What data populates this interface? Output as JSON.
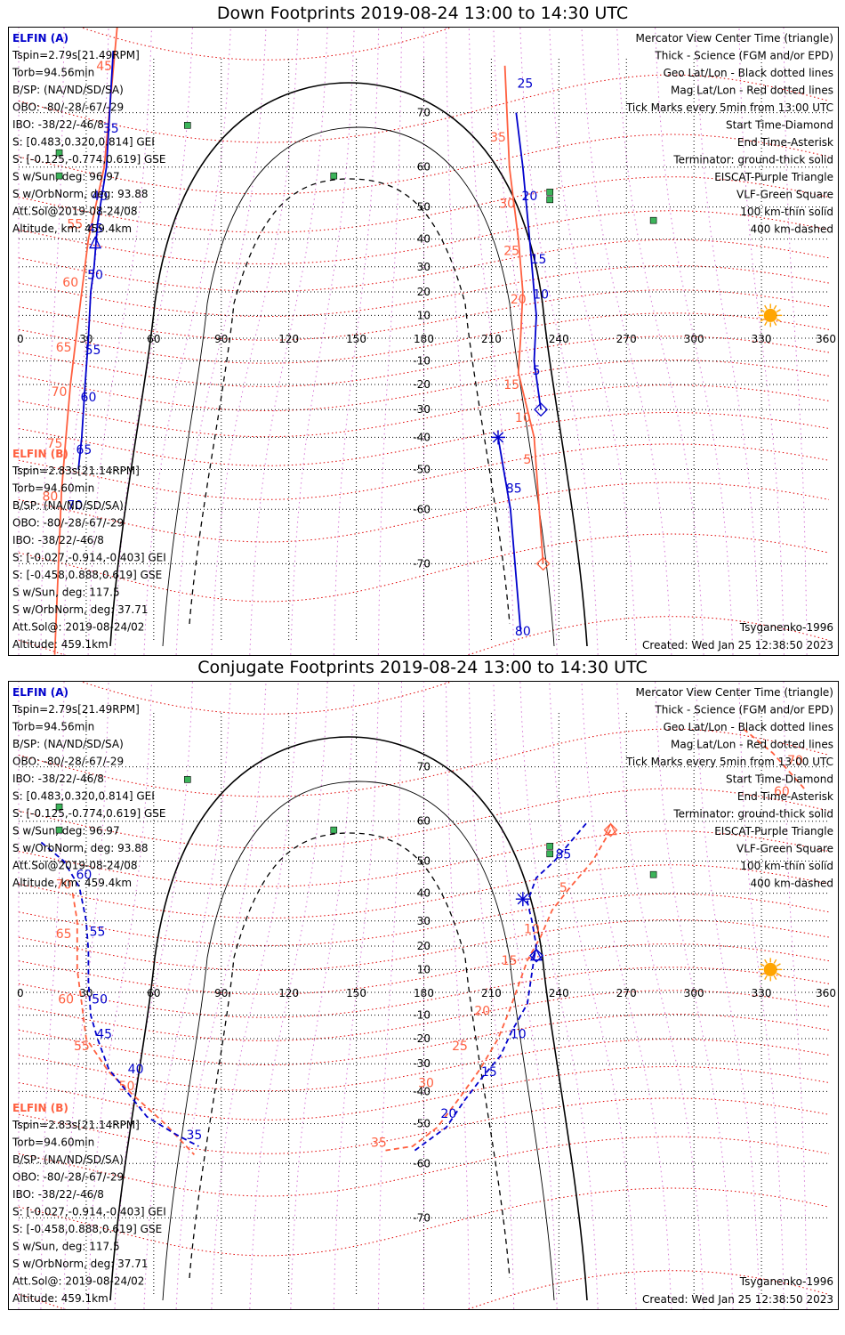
{
  "chart_data": [
    {
      "type": "map",
      "title": "Down Footprints 2019-08-24 13:00 to 14:30 UTC",
      "xlabel": "Geographic longitude (deg)",
      "ylabel": "Geographic latitude (deg)",
      "xlim": [
        0,
        360
      ],
      "ylim": [
        -80,
        80
      ],
      "lon_ticks": [
        "0",
        "30",
        "60",
        "90",
        "120",
        "150",
        "180",
        "210",
        "240",
        "270",
        "300",
        "330",
        "360"
      ],
      "lat_ticks": [
        "70",
        "60",
        "50",
        "40",
        "30",
        "20",
        "10",
        "-10",
        "-20",
        "-30",
        "-40",
        "-50",
        "-60",
        "-70"
      ],
      "spacecraft_a": {
        "name": "ELFIN (A)",
        "color": "#0000cc",
        "info": [
          "Tspin=2.79s[21.49RPM]",
          "Torb=94.56min",
          "B/SP: (NA/ND/SD/SA)",
          "OBO: -80/-28/-67/-29",
          "IBO: -38/22/-46/8",
          "S: [0.483,0.320,0.814] GEI",
          "S: [-0.125,-0.774,0.619] GSE",
          "S w/Sun, deg: 96.97",
          "S w/OrbNorm, deg: 93.88",
          "Att.Sol@2019-08-24/08",
          "Altitude, km: 459.4km"
        ],
        "segments": [
          {
            "points": [
              [
                42,
                77.5
              ],
              [
                39,
                60
              ],
              [
                35,
                45
              ],
              [
                33.5,
                30
              ],
              [
                32,
                20
              ],
              [
                31,
                0
              ],
              [
                29.5,
                -20
              ],
              [
                28,
                -40
              ],
              [
                26.5,
                -50
              ]
            ]
          },
          {
            "points": [
              [
                221,
                70
              ],
              [
                224,
                60
              ],
              [
                227,
                40
              ],
              [
                229,
                20
              ],
              [
                230,
                10
              ],
              [
                229,
                -10
              ],
              [
                232,
                -30
              ]
            ]
          },
          {
            "points": [
              [
                213,
                -40
              ],
              [
                218.5,
                -60
              ],
              [
                223,
                -78
              ]
            ]
          }
        ],
        "labels": [
          [
            "35",
            41,
            67.5
          ],
          [
            "40",
            36,
            53
          ],
          [
            "45",
            34,
            43.5
          ],
          [
            "50",
            34,
            27
          ],
          [
            "55",
            33,
            -5
          ],
          [
            "60",
            31,
            -25
          ],
          [
            "65",
            29,
            -44
          ],
          [
            "70",
            25,
            -59
          ],
          [
            "25",
            225,
            74
          ],
          [
            "20",
            227,
            53
          ],
          [
            "15",
            231,
            33
          ],
          [
            "10",
            232,
            19
          ],
          [
            "5",
            230,
            -14
          ],
          [
            "85",
            220,
            -55
          ],
          [
            "80",
            224,
            -78
          ]
        ],
        "start": [
          34,
          38.5
        ],
        "end_time": [
          232,
          -30
        ],
        "end_asterisk": [
          213,
          -40
        ]
      },
      "spacecraft_b": {
        "name": "ELFIN (B)",
        "color": "#ff6040",
        "info": [
          "Tspin=2.83s[21.14RPM]",
          "Torb=94.60min",
          "B/SP: (NA/ND/SD/SA)",
          "OBO: -80/-28/-67/-29",
          "IBO: -38/22/-46/8",
          "S: [-0.027,-0.914,-0.403] GEI",
          "S: [-0.458,0.888,0.619] GSE",
          "S w/Sun, deg: 117.5",
          "S w/OrbNorm, deg: 37.71",
          "Att.Sol@: 2019-08-24/02",
          "Altitude: 459.1km"
        ],
        "segments": [
          {
            "points": [
              [
                44,
                80
              ],
              [
                38,
                60
              ],
              [
                31,
                40
              ],
              [
                28,
                20
              ],
              [
                25.5,
                0
              ],
              [
                23,
                -20
              ],
              [
                21,
                -40
              ],
              [
                19,
                -56
              ],
              [
                16,
                -80
              ]
            ]
          },
          {
            "points": [
              [
                216,
                76
              ],
              [
                218,
                60
              ],
              [
                222,
                40
              ],
              [
                224,
                20
              ],
              [
                223,
                0
              ],
              [
                222,
                -15
              ],
              [
                229,
                -40
              ],
              [
                233,
                -70
              ]
            ]
          }
        ],
        "labels": [
          [
            "45",
            38,
            76
          ],
          [
            "55",
            25,
            45
          ],
          [
            "60",
            23,
            24
          ],
          [
            "65",
            20,
            -4
          ],
          [
            "70",
            18,
            -23
          ],
          [
            "75",
            16,
            -42
          ],
          [
            "80",
            14,
            -57
          ],
          [
            "35",
            213,
            66
          ],
          [
            "30",
            217,
            51
          ],
          [
            "25",
            219,
            36
          ],
          [
            "20",
            222,
            17
          ],
          [
            "15",
            219,
            -20
          ],
          [
            "10",
            224,
            -33
          ],
          [
            "5",
            226,
            -47
          ]
        ],
        "start": [
          44,
          80
        ],
        "end_time": [
          233,
          -70
        ]
      },
      "legend_items": [
        "Mercator View Center Time (triangle)",
        "Thick - Science (FGM and/or EPD)",
        "Geo Lat/Lon - Black dotted lines",
        "Mag Lat/Lon - Red dotted lines",
        "Tick Marks every 5min from 13:00 UTC",
        "Start Time-Diamond",
        "End Time-Asterisk",
        "Terminator: ground-thick solid",
        "EISCAT-Purple Triangle",
        "VLF-Green Square",
        "100 km-thin solid",
        "400 km-dashed"
      ],
      "credit": "Tsyganenko-1996",
      "created": "Created: Wed Jan 25 12:38:50 2023"
    },
    {
      "type": "map",
      "title": "Conjugate Footprints 2019-08-24 13:00 to 14:30 UTC",
      "xlabel": "Geographic longitude (deg)",
      "ylabel": "Geographic latitude (deg)",
      "xlim": [
        0,
        360
      ],
      "ylim": [
        -80,
        80
      ],
      "lon_ticks": [
        "0",
        "30",
        "60",
        "90",
        "120",
        "150",
        "180",
        "210",
        "240",
        "270",
        "300",
        "330",
        "360"
      ],
      "lat_ticks": [
        "70",
        "60",
        "50",
        "40",
        "30",
        "20",
        "10",
        "-10",
        "-20",
        "-30",
        "-40",
        "-50",
        "-60",
        "-70"
      ],
      "spacecraft_a": {
        "name": "ELFIN (A)",
        "color": "#0000cc",
        "info": [
          "Tspin=2.79s[21.49RPM]",
          "Torb=94.56min",
          "B/SP: (NA/ND/SD/SA)",
          "OBO: -80/-28/-67/-29",
          "IBO: -38/22/-46/8",
          "S: [0.483,0.320,0.814] GEI",
          "S: [-0.125,-0.774,0.619] GSE",
          "S w/Sun, deg: 96.97",
          "S w/OrbNorm, deg: 93.88",
          "Att.Sol@2019-08-24/08",
          "Altitude, km: 459.4km"
        ],
        "segments": [
          {
            "points": [
              [
                10,
                55
              ],
              [
                20,
                50
              ],
              [
                27,
                42
              ],
              [
                30,
                30
              ],
              [
                31,
                18
              ],
              [
                31,
                5
              ],
              [
                32,
                -10
              ],
              [
                35,
                -20
              ],
              [
                40,
                -32
              ],
              [
                48,
                -40
              ],
              [
                57,
                -48
              ],
              [
                70,
                -53
              ],
              [
                80,
                -56
              ]
            ]
          },
          {
            "points": [
              [
                229,
                15
              ],
              [
                230,
                20
              ],
              [
                228,
                30
              ],
              [
                226,
                37
              ],
              [
                230,
                45
              ],
              [
                238,
                50
              ],
              [
                245,
                55
              ],
              [
                253,
                60
              ]
            ]
          },
          {
            "points": [
              [
                176,
                -57
              ],
              [
                190,
                -51
              ],
              [
                198,
                -43
              ],
              [
                206,
                -35
              ],
              [
                214,
                -27
              ],
              [
                219,
                -17
              ],
              [
                226,
                -5
              ],
              [
                229,
                15
              ]
            ]
          }
        ],
        "labels": [
          [
            "60",
            29,
            46
          ],
          [
            "55",
            35,
            26
          ],
          [
            "50",
            36,
            -3
          ],
          [
            "45",
            38,
            -18
          ],
          [
            "40",
            52,
            -32
          ],
          [
            "35",
            78,
            -53
          ],
          [
            "85",
            242,
            52
          ],
          [
            "10",
            222,
            -18
          ],
          [
            "15",
            209,
            -33
          ],
          [
            "20",
            191,
            -47
          ]
        ],
        "start": [
          230,
          16
        ],
        "end_time": [
          230,
          16
        ],
        "end_asterisk": [
          224,
          38
        ]
      },
      "spacecraft_b": {
        "name": "ELFIN (B)",
        "color": "#ff6040",
        "info": [
          "Tspin=2.83s[21.14RPM]",
          "Torb=94.60min",
          "B/SP: (NA/ND/SD/SA)",
          "OBO: -80/-28/-67/-29",
          "IBO: -38/22/-46/8",
          "S: [-0.027,-0.914,-0.403] GEI",
          "S: [-0.458,0.888,0.619] GSE",
          "S w/Sun, deg: 117.5",
          "S w/OrbNorm, deg: 37.71",
          "Att.Sol@: 2019-08-24/02",
          "Altitude: 459.1km"
        ],
        "segments": [
          {
            "points": [
              [
                24,
                40
              ],
              [
                26,
                30
              ],
              [
                26,
                20
              ],
              [
                26,
                10
              ],
              [
                28,
                -5
              ],
              [
                30,
                -20
              ],
              [
                40,
                -33
              ],
              [
                52,
                -42
              ],
              [
                65,
                -50
              ],
              [
                78,
                -58
              ]
            ]
          },
          {
            "points": [
              [
                263,
                58
              ],
              [
                255,
                50
              ],
              [
                245,
                42
              ],
              [
                237,
                34
              ],
              [
                232,
                24
              ],
              [
                226,
                14
              ],
              [
                222,
                3
              ],
              [
                218,
                -8
              ],
              [
                213,
                -20
              ],
              [
                205,
                -32
              ],
              [
                196,
                -42
              ],
              [
                186,
                -51
              ],
              [
                175,
                -56
              ],
              [
                163,
                -57
              ]
            ]
          },
          {
            "points": [
              [
                322,
                75
              ],
              [
                335,
                72
              ],
              [
                350,
                66
              ]
            ]
          }
        ],
        "labels": [
          [
            "70",
            20,
            43
          ],
          [
            "65",
            20,
            25
          ],
          [
            "60",
            21,
            -3
          ],
          [
            "55",
            28,
            -23
          ],
          [
            "50",
            48,
            -38
          ],
          [
            "5",
            242,
            42
          ],
          [
            "10",
            228,
            27
          ],
          [
            "15",
            218,
            14
          ],
          [
            "20",
            206,
            -8
          ],
          [
            "25",
            196,
            -23
          ],
          [
            "30",
            181,
            -37
          ],
          [
            "35",
            160,
            -55
          ],
          [
            "70",
            345,
            71
          ],
          [
            "60",
            339,
            66
          ]
        ],
        "start": [
          263,
          58
        ],
        "end_time": [
          263,
          58
        ]
      },
      "legend_items": [
        "Mercator View Center Time (triangle)",
        "Thick - Science (FGM and/or EPD)",
        "Geo Lat/Lon - Black dotted lines",
        "Mag Lat/Lon - Red dotted lines",
        "Tick Marks every 5min from 13:00 UTC",
        "Start Time-Diamond",
        "End Time-Asterisk",
        "Terminator: ground-thick solid",
        "EISCAT-Purple Triangle",
        "VLF-Green Square",
        "100 km-thin solid",
        "400 km-dashed"
      ],
      "credit": "Tsyganenko-1996",
      "created": "Created: Wed Jan 25 12:38:50 2023"
    }
  ],
  "colors": {
    "elfin_a": "#0000cc",
    "elfin_b": "#ff6040",
    "mag_grid": "#e00000",
    "geo_grid": "#000000",
    "eiscat": "#cc55cc",
    "vlf": "#22aa44",
    "sun": "#ffa500"
  },
  "vlf_stations": [
    [
      75,
      68
    ],
    [
      18,
      63
    ],
    [
      18,
      58
    ],
    [
      140,
      58
    ],
    [
      236,
      54
    ],
    [
      236,
      52
    ],
    [
      282,
      46
    ]
  ],
  "sun_position": [
    334,
    10
  ]
}
